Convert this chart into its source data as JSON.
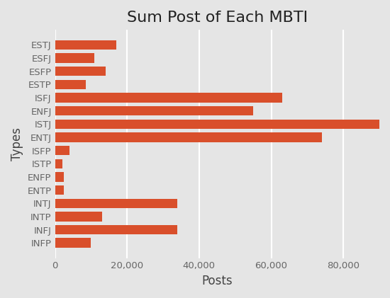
{
  "categories": [
    "INFP",
    "INFJ",
    "INTP",
    "INTJ",
    "ENTP",
    "ENFP",
    "ISTP",
    "ISFP",
    "ENTJ",
    "ISTJ",
    "ENFJ",
    "ISFJ",
    "ESTP",
    "ESFP",
    "ESFJ",
    "ESTJ"
  ],
  "values": [
    10000,
    34000,
    13000,
    34000,
    2500,
    2500,
    2000,
    4000,
    74000,
    91000,
    55000,
    63000,
    8500,
    14000,
    11000,
    17000
  ],
  "bar_color": "#d94f2b",
  "title": "Sum Post of Each MBTI",
  "xlabel": "Posts",
  "ylabel": "Types",
  "xlim": [
    0,
    90000
  ],
  "background_color": "#e5e5e5",
  "grid_color": "#ffffff",
  "title_fontsize": 16,
  "label_fontsize": 12,
  "tick_fontsize": 9.5
}
